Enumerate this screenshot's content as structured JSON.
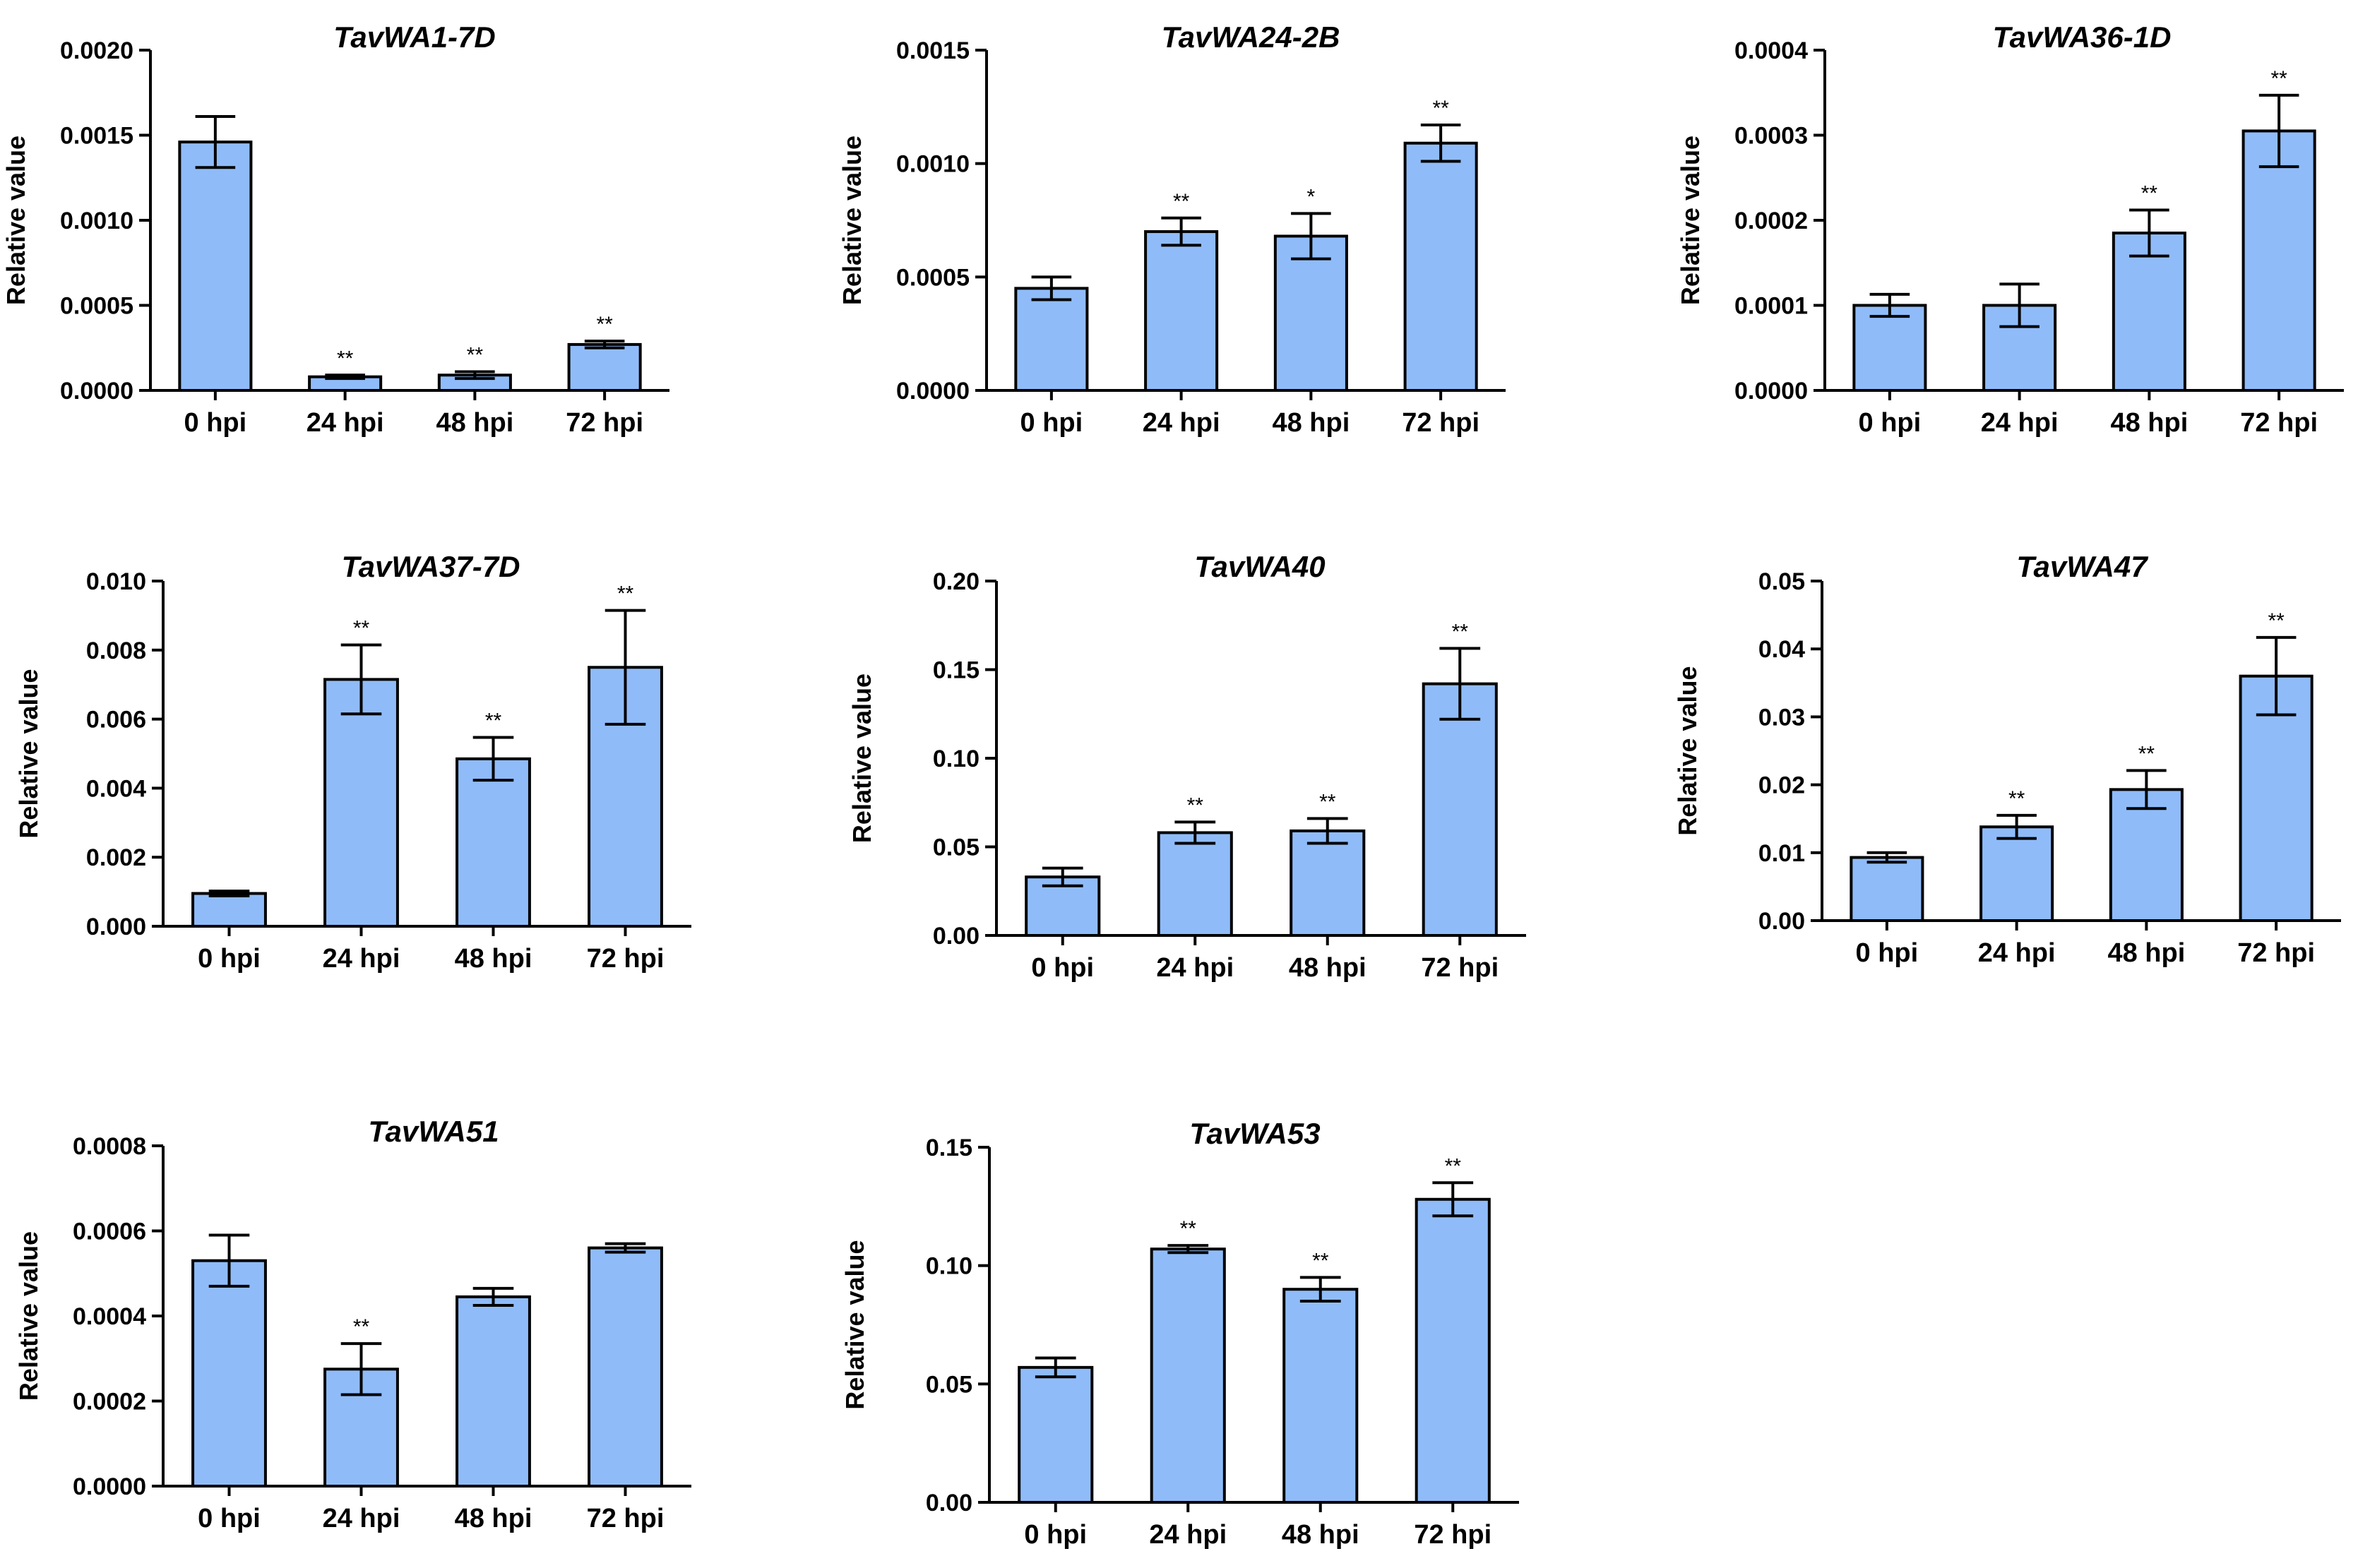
{
  "colors": {
    "bar_fill": "#8fbcf9",
    "stroke": "#000000"
  },
  "chart_data": [
    {
      "type": "bar",
      "title": "TavWA1-7D",
      "ylabel": "Relative value",
      "categories": [
        "0 hpi",
        "24 hpi",
        "48 hpi",
        "72 hpi"
      ],
      "values": [
        0.00146,
        8e-05,
        9e-05,
        0.00027
      ],
      "errors": [
        0.00015,
        1e-05,
        2e-05,
        2e-05
      ],
      "significance": [
        "",
        "**",
        "**",
        "**"
      ],
      "ylim": [
        0,
        0.002
      ],
      "ticks": [
        0,
        0.0005,
        0.001,
        0.0015,
        0.002
      ],
      "tick_labels": [
        "0.0000",
        "0.0005",
        "0.0010",
        "0.0015",
        "0.0020"
      ]
    },
    {
      "type": "bar",
      "title": "TavWA24-2B",
      "ylabel": "Relative value",
      "categories": [
        "0 hpi",
        "24 hpi",
        "48 hpi",
        "72 hpi"
      ],
      "values": [
        0.00045,
        0.0007,
        0.00068,
        0.00109
      ],
      "errors": [
        5e-05,
        6e-05,
        0.0001,
        8e-05
      ],
      "significance": [
        "",
        "**",
        "*",
        "**"
      ],
      "ylim": [
        0,
        0.0015
      ],
      "ticks": [
        0,
        0.0005,
        0.001,
        0.0015
      ],
      "tick_labels": [
        "0.0000",
        "0.0005",
        "0.0010",
        "0.0015"
      ]
    },
    {
      "type": "bar",
      "title": "TavWA36-1D",
      "ylabel": "Relative value",
      "categories": [
        "0 hpi",
        "24 hpi",
        "48 hpi",
        "72 hpi"
      ],
      "values": [
        0.0001,
        0.0001,
        0.000185,
        0.000305
      ],
      "errors": [
        1.3e-05,
        2.5e-05,
        2.7e-05,
        4.2e-05
      ],
      "significance": [
        "",
        "",
        "**",
        "**"
      ],
      "ylim": [
        0,
        0.0004
      ],
      "ticks": [
        0,
        0.0001,
        0.0002,
        0.0003,
        0.0004
      ],
      "tick_labels": [
        "0.0000",
        "0.0001",
        "0.0002",
        "0.0003",
        "0.0004"
      ]
    },
    {
      "type": "bar",
      "title": "TavWA37-7D",
      "ylabel": "Relative value",
      "categories": [
        "0 hpi",
        "24 hpi",
        "48 hpi",
        "72 hpi"
      ],
      "values": [
        0.00095,
        0.00715,
        0.00485,
        0.0075
      ],
      "errors": [
        7e-05,
        0.001,
        0.00062,
        0.00165
      ],
      "significance": [
        "",
        "**",
        "**",
        "**"
      ],
      "ylim": [
        0,
        0.01
      ],
      "ticks": [
        0,
        0.002,
        0.004,
        0.006,
        0.008,
        0.01
      ],
      "tick_labels": [
        "0.000",
        "0.002",
        "0.004",
        "0.006",
        "0.008",
        "0.010"
      ]
    },
    {
      "type": "bar",
      "title": "TavWA40",
      "ylabel": "Relative value",
      "categories": [
        "0 hpi",
        "24 hpi",
        "48 hpi",
        "72 hpi"
      ],
      "values": [
        0.033,
        0.058,
        0.059,
        0.142
      ],
      "errors": [
        0.005,
        0.006,
        0.007,
        0.02
      ],
      "significance": [
        "",
        "**",
        "**",
        "**"
      ],
      "ylim": [
        0,
        0.2
      ],
      "ticks": [
        0,
        0.05,
        0.1,
        0.15,
        0.2
      ],
      "tick_labels": [
        "0.00",
        "0.05",
        "0.10",
        "0.15",
        "0.20"
      ]
    },
    {
      "type": "bar",
      "title": "TavWA47",
      "ylabel": "Relative value",
      "categories": [
        "0 hpi",
        "24 hpi",
        "48 hpi",
        "72 hpi"
      ],
      "values": [
        0.0093,
        0.0138,
        0.0193,
        0.036
      ],
      "errors": [
        0.0007,
        0.0017,
        0.0028,
        0.0057
      ],
      "significance": [
        "",
        "**",
        "**",
        "**"
      ],
      "ylim": [
        0,
        0.05
      ],
      "ticks": [
        0,
        0.01,
        0.02,
        0.03,
        0.04,
        0.05
      ],
      "tick_labels": [
        "0.00",
        "0.01",
        "0.02",
        "0.03",
        "0.04",
        "0.05"
      ]
    },
    {
      "type": "bar",
      "title": "TavWA51",
      "ylabel": "Relative value",
      "categories": [
        "0 hpi",
        "24 hpi",
        "48 hpi",
        "72 hpi"
      ],
      "values": [
        0.00053,
        0.000275,
        0.000445,
        0.00056
      ],
      "errors": [
        6e-05,
        6e-05,
        2e-05,
        1e-05
      ],
      "significance": [
        "",
        "**",
        "",
        ""
      ],
      "ylim": [
        0,
        0.0008
      ],
      "ticks": [
        0,
        0.0002,
        0.0004,
        0.0006,
        0.0008
      ],
      "tick_labels": [
        "0.0000",
        "0.0002",
        "0.0004",
        "0.0006",
        "0.0008"
      ]
    },
    {
      "type": "bar",
      "title": "TavWA53",
      "ylabel": "Relative value",
      "categories": [
        "0 hpi",
        "24 hpi",
        "48 hpi",
        "72 hpi"
      ],
      "values": [
        0.057,
        0.107,
        0.09,
        0.128
      ],
      "errors": [
        0.004,
        0.0015,
        0.005,
        0.007
      ],
      "significance": [
        "",
        "**",
        "**",
        "**"
      ],
      "ylim": [
        0,
        0.15
      ],
      "ticks": [
        0,
        0.05,
        0.1,
        0.15
      ],
      "tick_labels": [
        "0.00",
        "0.05",
        "0.10",
        "0.15"
      ]
    }
  ]
}
